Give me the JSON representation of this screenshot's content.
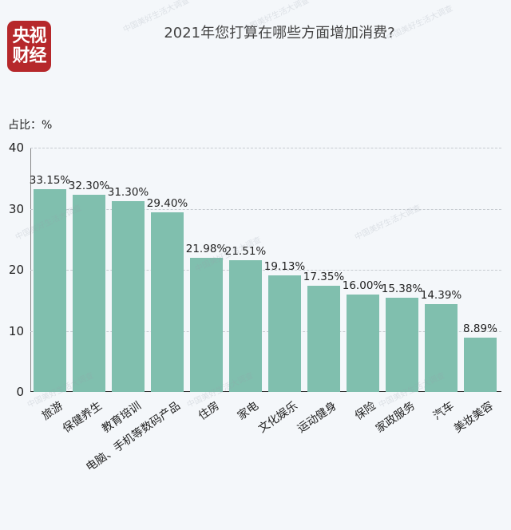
{
  "header": {
    "logo_line1": "央视",
    "logo_line2": "财经",
    "title": "2021年您打算在哪些方面增加消费?"
  },
  "watermark": "中国美好生活大调查",
  "chart_data": {
    "type": "bar",
    "title": "2021年您打算在哪些方面增加消费?",
    "xlabel": "",
    "ylabel": "占比：%",
    "ylim": [
      0,
      40
    ],
    "yticks": [
      0,
      10,
      20,
      30,
      40
    ],
    "grid": true,
    "categories": [
      "旅游",
      "保健养生",
      "教育培训",
      "电脑、手机等数码产品",
      "住房",
      "家电",
      "文化娱乐",
      "运动健身",
      "保险",
      "家政服务",
      "汽车",
      "美妆美容"
    ],
    "values": [
      33.15,
      32.3,
      31.3,
      29.4,
      21.98,
      21.51,
      19.13,
      17.35,
      16.0,
      15.38,
      14.39,
      8.89
    ],
    "value_labels": [
      "33.15%",
      "32.30%",
      "31.30%",
      "29.40%",
      "21.98%",
      "21.51%",
      "19.13%",
      "17.35%",
      "16.00%",
      "15.38%",
      "14.39%",
      "8.89%"
    ],
    "bar_color": "#80bfae"
  },
  "colors": {
    "logo_bg": "#b6282b",
    "background": "#f4f7fa"
  }
}
